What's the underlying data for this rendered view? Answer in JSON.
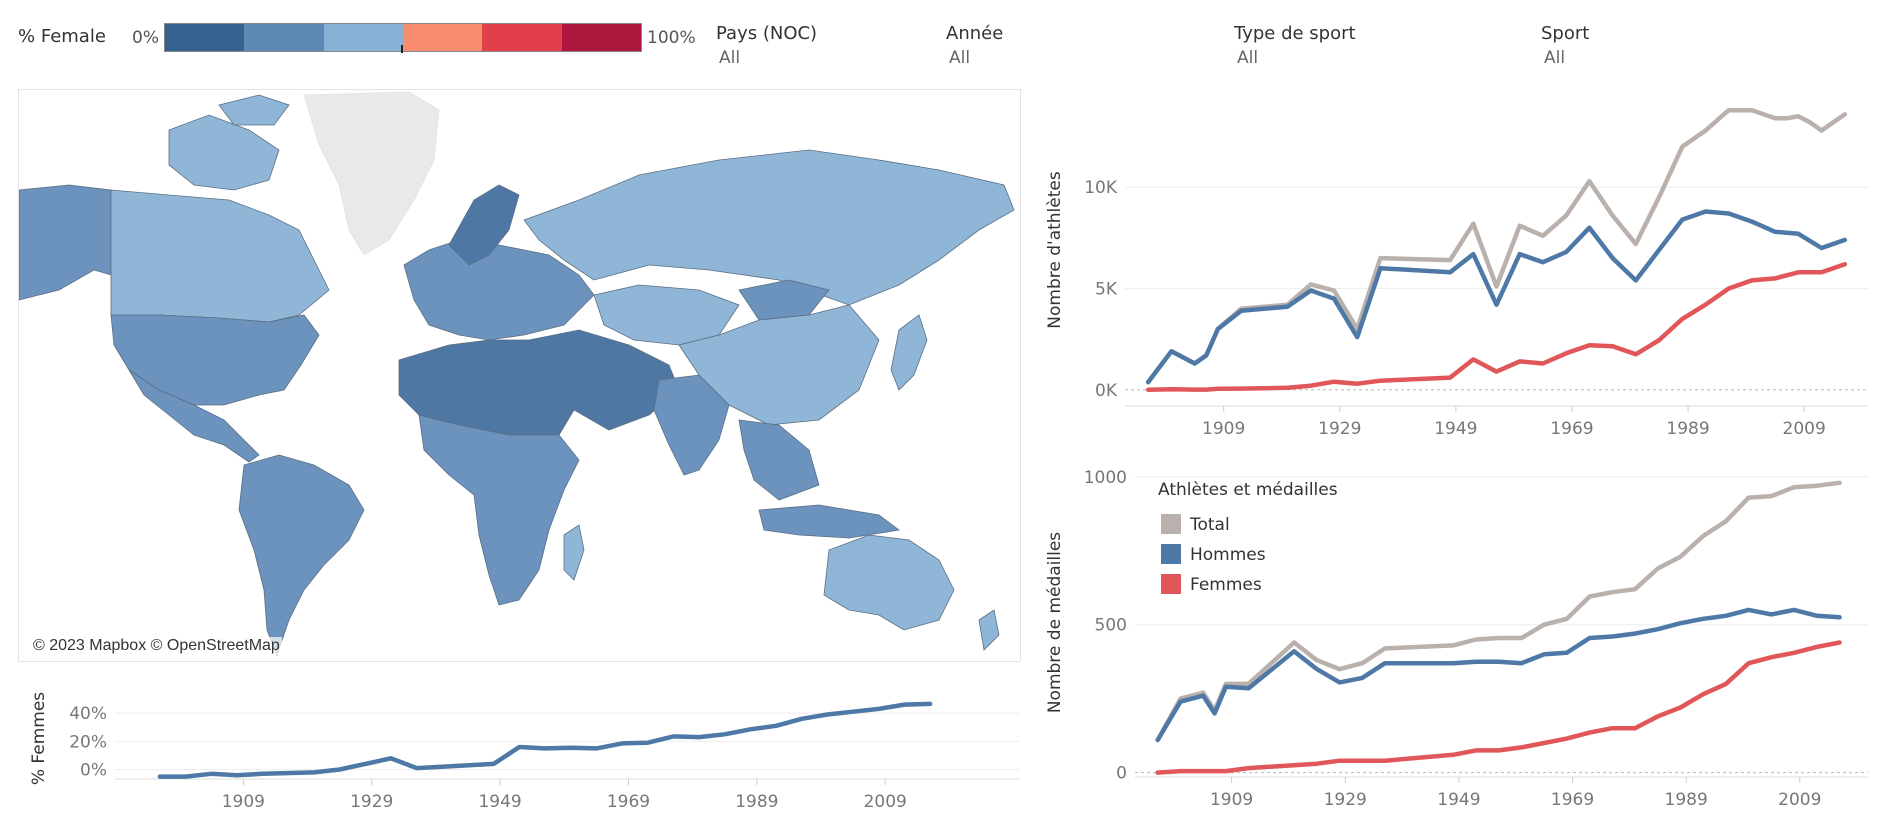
{
  "legend_female": {
    "title": "% Female",
    "min_label": "0%",
    "max_label": "100%",
    "colors": [
      "#36628f",
      "#5d89b4",
      "#88b1d6",
      "#f88c6e",
      "#e1404a",
      "#ad163d"
    ]
  },
  "filters": [
    {
      "label": "Pays (NOC)",
      "value": "All"
    },
    {
      "label": "Année",
      "value": "All"
    },
    {
      "label": "Type de sport",
      "value": "All"
    },
    {
      "label": "Sport",
      "value": "All"
    }
  ],
  "map": {
    "credit": "© 2023 Mapbox © OpenStreetMap",
    "base_color": "#8fb6d7",
    "mid_color": "#6b93bd",
    "dark_color": "#4f77a3",
    "land_no_data": "#e9e9e9"
  },
  "chart_data": [
    {
      "type": "line",
      "ylabel": "% Femmes",
      "yticks": [
        "0%",
        "20%",
        "40%"
      ],
      "xticks": [
        "1909",
        "1929",
        "1949",
        "1969",
        "1989",
        "2009"
      ],
      "ylim": [
        -6,
        50
      ],
      "xlim": [
        1889,
        2030
      ],
      "series": [
        {
          "name": "",
          "color": "#4e79a7",
          "x": [
            1896,
            1900,
            1904,
            1906,
            1908,
            1912,
            1920,
            1924,
            1928,
            1932,
            1936,
            1948,
            1952,
            1956,
            1960,
            1964,
            1968,
            1972,
            1976,
            1980,
            1984,
            1988,
            1992,
            1996,
            2000,
            2004,
            2008,
            2012,
            2016
          ],
          "y": [
            -5,
            -5,
            -3,
            -3.5,
            -4,
            -3,
            -2,
            0,
            4,
            8,
            1,
            4,
            16,
            15,
            15.5,
            15,
            18.5,
            19,
            23.5,
            23,
            25,
            28.5,
            31,
            36,
            39,
            41,
            43,
            46,
            46.5
          ]
        }
      ]
    },
    {
      "type": "line",
      "ylabel": "Nombre d'athlètes",
      "yticks": [
        "0K",
        "5K",
        "10K"
      ],
      "xticks": [
        "1909",
        "1929",
        "1949",
        "1969",
        "1989",
        "2009"
      ],
      "ylim": [
        -800,
        14600
      ],
      "xlim": [
        1892,
        2020
      ],
      "series": [
        {
          "name": "Total",
          "color": "#bab0ac",
          "x": [
            1896,
            1900,
            1904,
            1906,
            1908,
            1912,
            1920,
            1924,
            1928,
            1932,
            1936,
            1948,
            1952,
            1956,
            1960,
            1964,
            1968,
            1972,
            1976,
            1980,
            1984,
            1988,
            1992,
            1994,
            1996,
            1998,
            2000,
            2002,
            2004,
            2006,
            2008,
            2010,
            2012,
            2014,
            2016
          ],
          "y": [
            380,
            1900,
            1300,
            1700,
            3000,
            4000,
            4200,
            5200,
            4900,
            3000,
            6500,
            6400,
            8200,
            5100,
            8100,
            7600,
            8600,
            10300,
            8600,
            7200,
            9500,
            12000,
            12800,
            13300,
            13800,
            13800,
            13800,
            13600,
            13400,
            13400,
            13500,
            13200,
            12800,
            13200,
            13600
          ]
        },
        {
          "name": "Hommes",
          "color": "#4e79a7",
          "x": [
            1896,
            1900,
            1904,
            1906,
            1908,
            1912,
            1920,
            1924,
            1928,
            1932,
            1936,
            1948,
            1952,
            1956,
            1960,
            1964,
            1968,
            1972,
            1976,
            1980,
            1984,
            1988,
            1992,
            1996,
            2000,
            2004,
            2008,
            2012,
            2016
          ],
          "y": [
            380,
            1900,
            1300,
            1700,
            3000,
            3900,
            4100,
            4900,
            4500,
            2600,
            6000,
            5800,
            6700,
            4200,
            6700,
            6300,
            6800,
            8000,
            6500,
            5400,
            6900,
            8400,
            8800,
            8700,
            8300,
            7800,
            7700,
            7000,
            7400
          ]
        },
        {
          "name": "Femmes",
          "color": "#e15759",
          "x": [
            1896,
            1900,
            1904,
            1906,
            1908,
            1912,
            1920,
            1924,
            1928,
            1932,
            1936,
            1948,
            1952,
            1956,
            1960,
            1964,
            1968,
            1972,
            1976,
            1980,
            1984,
            1988,
            1992,
            1996,
            2000,
            2004,
            2008,
            2012,
            2016
          ],
          "y": [
            0,
            30,
            10,
            10,
            50,
            60,
            100,
            200,
            400,
            300,
            450,
            600,
            1500,
            900,
            1400,
            1300,
            1800,
            2200,
            2150,
            1750,
            2450,
            3500,
            4200,
            5000,
            5400,
            5500,
            5800,
            5800,
            6200
          ]
        }
      ]
    },
    {
      "type": "line",
      "ylabel": "Nombre de médailles",
      "yticks": [
        "0",
        "500",
        "1000"
      ],
      "xticks": [
        "1909",
        "1929",
        "1949",
        "1969",
        "1989",
        "2009"
      ],
      "ylim": [
        -15,
        1030
      ],
      "xlim": [
        1892,
        2021
      ],
      "legend": {
        "title": "Athlètes et médailles",
        "position": "top-left"
      },
      "series": [
        {
          "name": "Total",
          "color": "#bab0ac",
          "x": [
            1896,
            1900,
            1904,
            1906,
            1908,
            1912,
            1920,
            1924,
            1928,
            1932,
            1936,
            1948,
            1952,
            1956,
            1960,
            1964,
            1968,
            1972,
            1976,
            1980,
            1984,
            1988,
            1992,
            1996,
            2000,
            2004,
            2008,
            2012,
            2016
          ],
          "y": [
            110,
            250,
            270,
            210,
            300,
            300,
            440,
            380,
            350,
            370,
            420,
            430,
            450,
            455,
            455,
            500,
            520,
            595,
            610,
            620,
            690,
            730,
            800,
            850,
            930,
            935,
            965,
            970,
            980
          ]
        },
        {
          "name": "Hommes",
          "color": "#4e79a7",
          "x": [
            1896,
            1900,
            1904,
            1906,
            1908,
            1912,
            1920,
            1924,
            1928,
            1932,
            1936,
            1948,
            1952,
            1956,
            1960,
            1964,
            1968,
            1972,
            1976,
            1980,
            1984,
            1988,
            1992,
            1996,
            2000,
            2004,
            2008,
            2012,
            2016
          ],
          "y": [
            110,
            240,
            260,
            200,
            290,
            285,
            410,
            350,
            305,
            320,
            370,
            370,
            375,
            375,
            370,
            400,
            405,
            455,
            460,
            470,
            485,
            505,
            520,
            530,
            550,
            535,
            550,
            530,
            525
          ]
        },
        {
          "name": "Femmes",
          "color": "#e15759",
          "x": [
            1896,
            1900,
            1904,
            1906,
            1908,
            1912,
            1920,
            1924,
            1928,
            1932,
            1936,
            1948,
            1952,
            1956,
            1960,
            1964,
            1968,
            1972,
            1976,
            1980,
            1984,
            1988,
            1992,
            1996,
            2000,
            2004,
            2008,
            2012,
            2016
          ],
          "y": [
            0,
            5,
            5,
            5,
            5,
            15,
            25,
            30,
            40,
            40,
            40,
            60,
            75,
            75,
            85,
            100,
            115,
            135,
            150,
            150,
            190,
            220,
            265,
            300,
            370,
            390,
            405,
            425,
            440
          ]
        }
      ]
    }
  ]
}
